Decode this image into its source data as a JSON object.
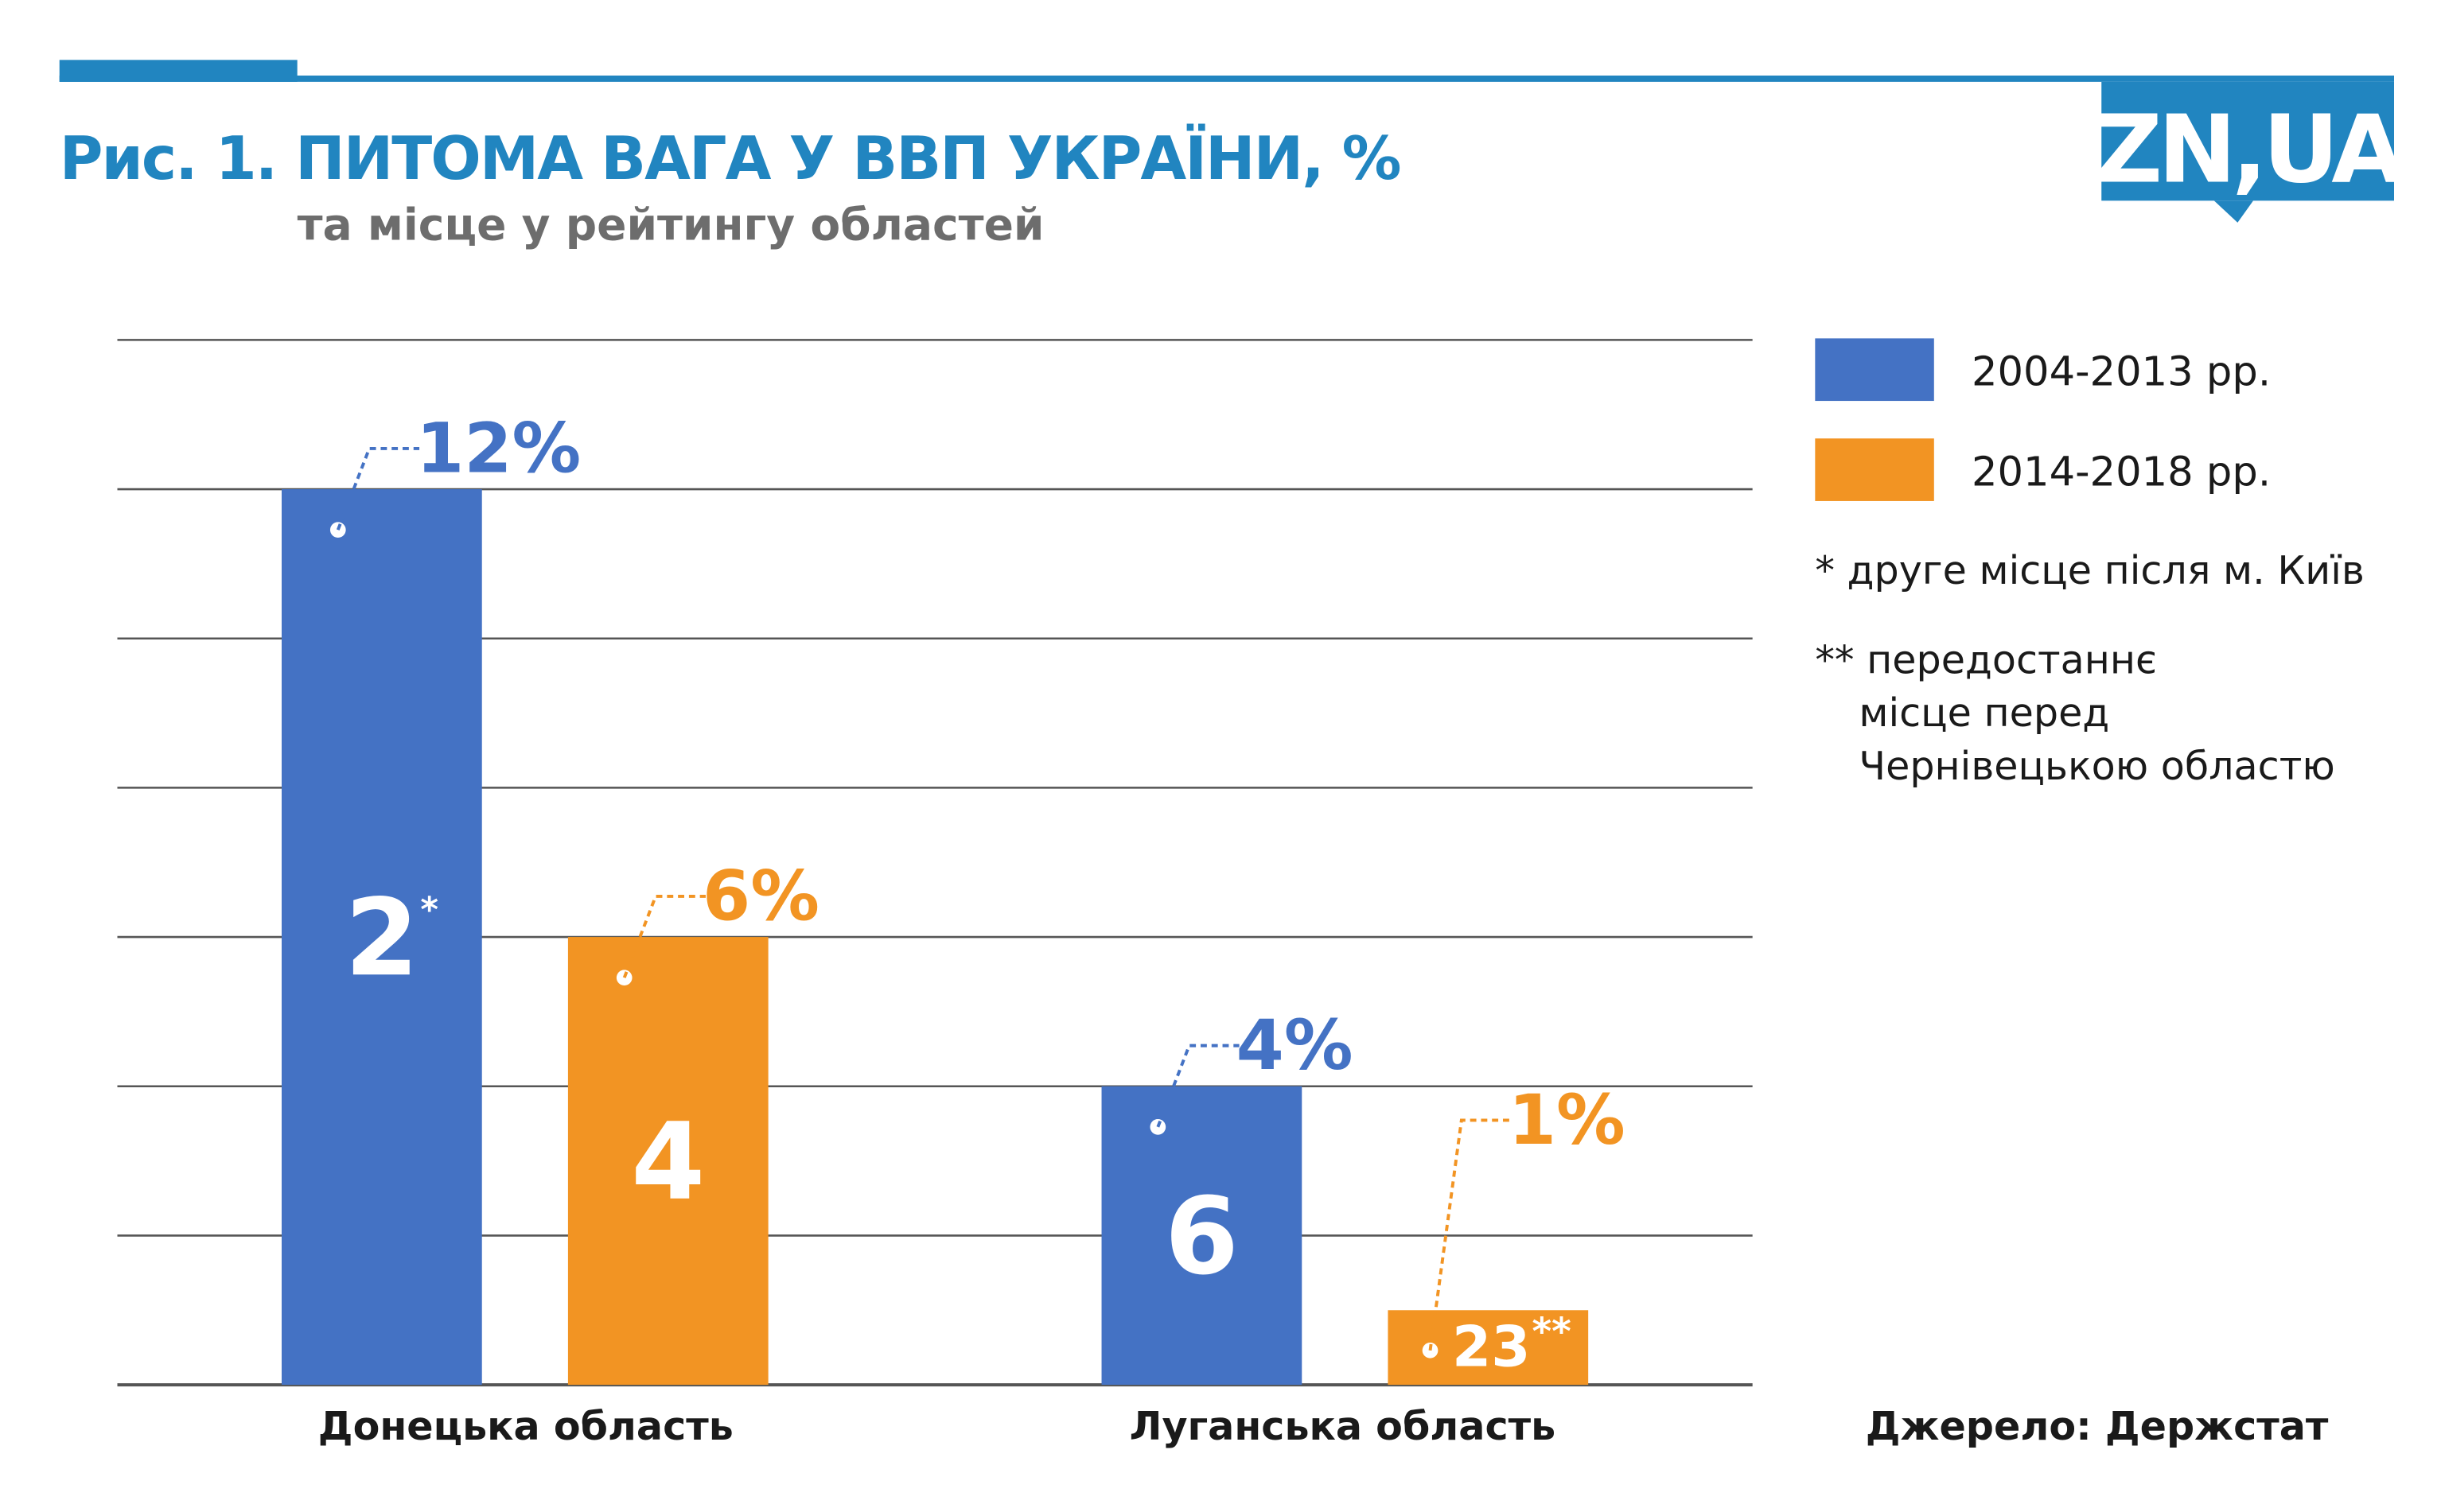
{
  "header": {
    "title": "Рис. 1. ПИТОМА ВАГА У ВВП УКРАЇНИ, %",
    "subtitle": "та місце у рейтингу областей",
    "logo": "ZN,UA"
  },
  "chart_data": {
    "type": "bar",
    "title": "Рис. 1. ПИТОМА ВАГА У ВВП УКРАЇНИ, %",
    "subtitle": "та місце у рейтингу областей",
    "categories": [
      "Донецька область",
      "Луганська область"
    ],
    "series": [
      {
        "name": "2004-2013 рр.",
        "color": "#4472c4",
        "values": [
          12,
          4
        ],
        "labels": [
          "12%",
          "4%"
        ],
        "ranks": [
          "2",
          "6"
        ],
        "rank_marks": [
          "*",
          ""
        ]
      },
      {
        "name": "2014-2018 рр.",
        "color": "#f29423",
        "values": [
          6,
          1
        ],
        "labels": [
          "6%",
          "1%"
        ],
        "ranks": [
          "4",
          "23"
        ],
        "rank_marks": [
          "",
          "**"
        ]
      }
    ],
    "ylim": [
      0,
      14
    ],
    "grid_step": 2,
    "grid": true,
    "legend_position": "right",
    "xlabel": "",
    "ylabel": ""
  },
  "notes": {
    "note1": "* друге місце після м. Київ",
    "note2_line1": "** передостаннє",
    "note2_line2": "місце перед",
    "note2_line3": "Чернівецькою областю",
    "source": "Джерело: Держстат"
  },
  "colors": {
    "brand": "#2185c0",
    "grid": "#555555"
  }
}
